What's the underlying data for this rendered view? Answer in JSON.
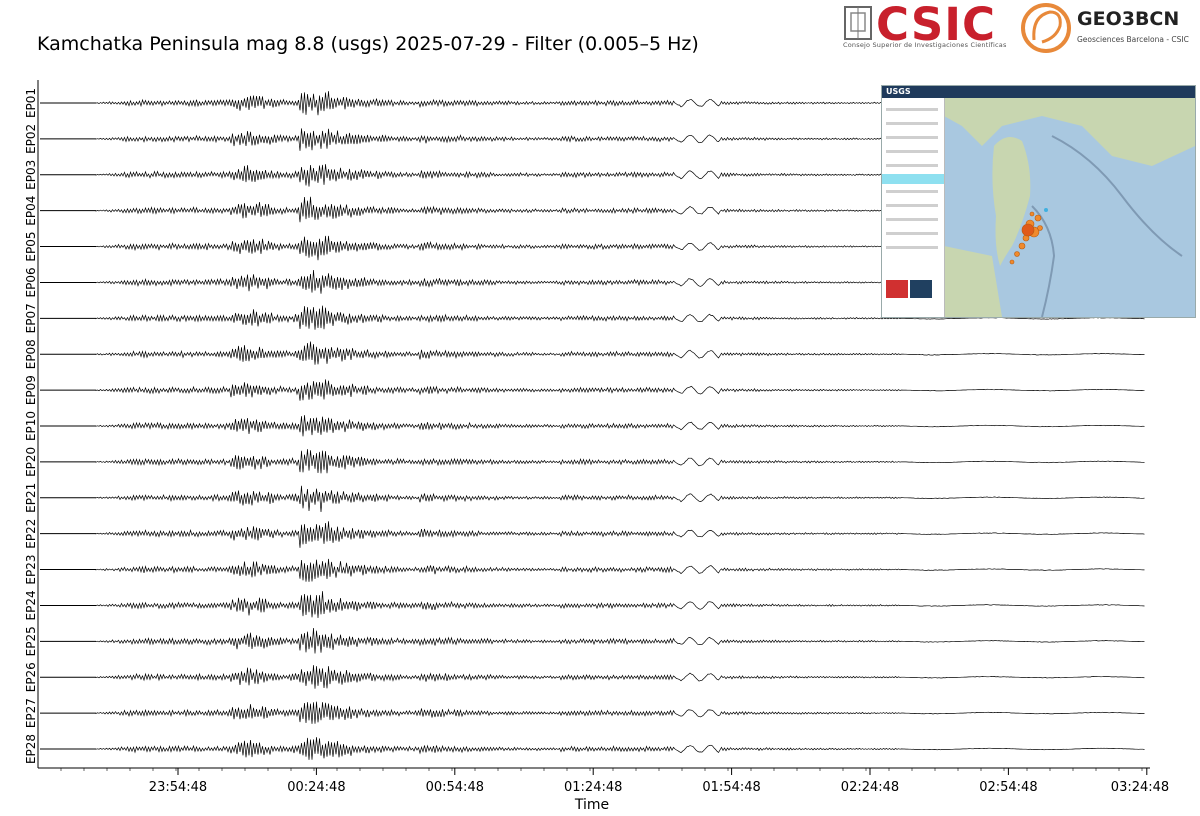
{
  "chart_data": {
    "type": "line",
    "title": "Kamchatka Peninsula mag 8.8 (usgs) 2025-07-29 - Filter (0.005–5 Hz)",
    "xlabel": "Time",
    "ylabel": "",
    "x_ticks": [
      "23:54:48",
      "00:24:48",
      "00:54:48",
      "01:24:48",
      "01:54:48",
      "02:24:48",
      "02:54:48",
      "03:24:48"
    ],
    "series": [
      {
        "name": "EP01"
      },
      {
        "name": "EP02"
      },
      {
        "name": "EP03"
      },
      {
        "name": "EP04"
      },
      {
        "name": "EP05"
      },
      {
        "name": "EP06"
      },
      {
        "name": "EP07"
      },
      {
        "name": "EP08"
      },
      {
        "name": "EP09"
      },
      {
        "name": "EP10"
      },
      {
        "name": "EP20"
      },
      {
        "name": "EP21"
      },
      {
        "name": "EP22"
      },
      {
        "name": "EP23"
      },
      {
        "name": "EP24"
      },
      {
        "name": "EP25"
      },
      {
        "name": "EP26"
      },
      {
        "name": "EP27"
      },
      {
        "name": "EP28"
      }
    ],
    "grid": false,
    "legend": "none",
    "trace_color": "#000000"
  },
  "logos": {
    "csic": "CSIC",
    "csic_subtitle": "Consejo Superior de Investigaciones Científicas",
    "geo": "GEO3BCN",
    "geo_subtitle": "Geosciences Barcelona - CSIC",
    "csic_color": "#c8202c",
    "geo_color": "#e8893a"
  },
  "inset": {
    "logo": "USGS",
    "ocean_color": "#a9c8e0",
    "land_color": "#c8d6b0",
    "marker_color": "#f08a2c"
  }
}
